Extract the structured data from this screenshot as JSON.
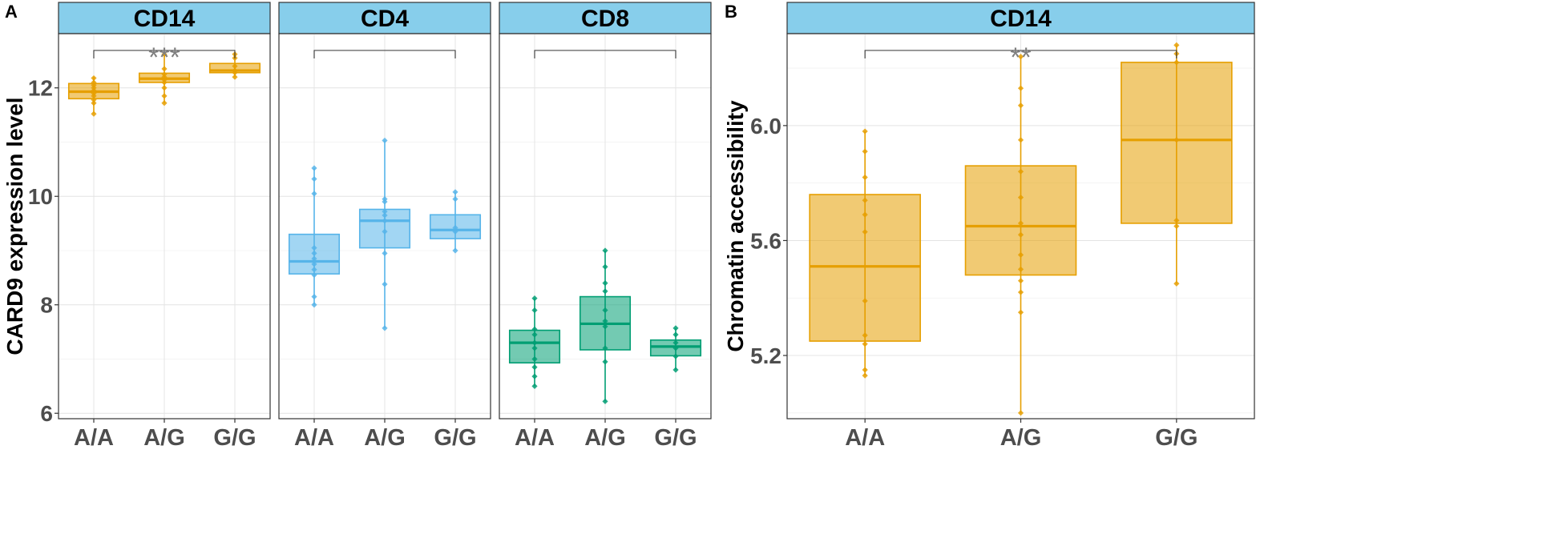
{
  "colors": {
    "CD14": "#E69F00",
    "CD4": "#56B4E9",
    "CD8": "#009E73",
    "strip_fill": "#87CEEB"
  },
  "chart_data": [
    {
      "panel_letter": "A",
      "type": "box",
      "ylabel": "CARD9 expression level",
      "xlabel": "",
      "ylim": [
        5.9,
        13.0
      ],
      "yticks": [
        6,
        8,
        10,
        12
      ],
      "grid": true,
      "legend": "none",
      "categories": [
        "A/A",
        "A/G",
        "G/G"
      ],
      "facets": [
        {
          "strip": "CD14",
          "color_key": "CD14",
          "significance": "***",
          "boxes": [
            {
              "q1": 11.8,
              "median": 11.93,
              "q3": 12.08,
              "whisker_low": 11.52,
              "whisker_high": 12.2,
              "points": [
                11.52,
                11.72,
                11.78,
                11.85,
                11.9,
                11.95,
                12.0,
                12.05,
                12.1,
                12.18
              ]
            },
            {
              "q1": 12.1,
              "median": 12.17,
              "q3": 12.27,
              "whisker_low": 11.72,
              "whisker_high": 12.62,
              "points": [
                11.72,
                11.85,
                12.0,
                12.1,
                12.15,
                12.2,
                12.25,
                12.35,
                12.62
              ]
            },
            {
              "q1": 12.28,
              "median": 12.32,
              "q3": 12.45,
              "whisker_low": 12.2,
              "whisker_high": 12.62,
              "points": [
                12.2,
                12.28,
                12.32,
                12.4,
                12.55,
                12.62
              ]
            }
          ]
        },
        {
          "strip": "CD4",
          "color_key": "CD4",
          "significance": "",
          "boxes": [
            {
              "q1": 8.57,
              "median": 8.8,
              "q3": 9.3,
              "whisker_low": 8.0,
              "whisker_high": 10.52,
              "points": [
                8.0,
                8.15,
                8.55,
                8.65,
                8.75,
                8.85,
                8.95,
                9.05,
                10.05,
                10.32,
                10.52
              ]
            },
            {
              "q1": 9.05,
              "median": 9.55,
              "q3": 9.76,
              "whisker_low": 7.57,
              "whisker_high": 11.03,
              "points": [
                7.57,
                8.38,
                8.95,
                9.35,
                9.55,
                9.65,
                9.72,
                9.9,
                9.95,
                11.03
              ]
            },
            {
              "q1": 9.22,
              "median": 9.38,
              "q3": 9.66,
              "whisker_low": 9.0,
              "whisker_high": 10.08,
              "points": [
                9.0,
                9.35,
                9.42,
                9.95,
                10.08
              ]
            }
          ]
        },
        {
          "strip": "CD8",
          "color_key": "CD8",
          "significance": "",
          "boxes": [
            {
              "q1": 6.93,
              "median": 7.3,
              "q3": 7.53,
              "whisker_low": 6.5,
              "whisker_high": 8.12,
              "points": [
                6.5,
                6.68,
                6.85,
                7.0,
                7.2,
                7.3,
                7.45,
                7.55,
                7.9,
                8.12
              ]
            },
            {
              "q1": 7.17,
              "median": 7.65,
              "q3": 8.15,
              "whisker_low": 6.22,
              "whisker_high": 9.0,
              "points": [
                6.22,
                6.95,
                7.2,
                7.6,
                7.7,
                7.9,
                8.25,
                8.4,
                8.7,
                9.0
              ]
            },
            {
              "q1": 7.06,
              "median": 7.23,
              "q3": 7.35,
              "whisker_low": 6.8,
              "whisker_high": 7.57,
              "points": [
                6.8,
                7.05,
                7.2,
                7.3,
                7.45,
                7.57
              ]
            }
          ]
        }
      ]
    },
    {
      "panel_letter": "B",
      "type": "box",
      "ylabel": "Chromatin accessibility",
      "xlabel": "",
      "ylim": [
        4.98,
        6.32
      ],
      "yticks": [
        5.2,
        5.6,
        6.0
      ],
      "ytick_labels": [
        "5.2",
        "5.6",
        "6.0"
      ],
      "grid": true,
      "legend": "none",
      "categories": [
        "A/A",
        "A/G",
        "G/G"
      ],
      "facets": [
        {
          "strip": "CD14",
          "color_key": "CD14",
          "significance": "**",
          "boxes": [
            {
              "q1": 5.25,
              "median": 5.51,
              "q3": 5.76,
              "whisker_low": 5.13,
              "whisker_high": 5.98,
              "points": [
                5.13,
                5.15,
                5.24,
                5.27,
                5.39,
                5.63,
                5.69,
                5.74,
                5.82,
                5.91,
                5.98
              ]
            },
            {
              "q1": 5.48,
              "median": 5.65,
              "q3": 5.86,
              "whisker_low": 5.0,
              "whisker_high": 6.24,
              "points": [
                5.0,
                5.35,
                5.42,
                5.46,
                5.5,
                5.55,
                5.62,
                5.66,
                5.75,
                5.84,
                5.95,
                6.07,
                6.13,
                6.24
              ]
            },
            {
              "q1": 5.66,
              "median": 5.95,
              "q3": 6.22,
              "whisker_low": 5.45,
              "whisker_high": 6.28,
              "points": [
                5.45,
                5.65,
                5.67,
                5.95,
                6.22,
                6.25,
                6.28
              ]
            }
          ]
        }
      ]
    }
  ]
}
